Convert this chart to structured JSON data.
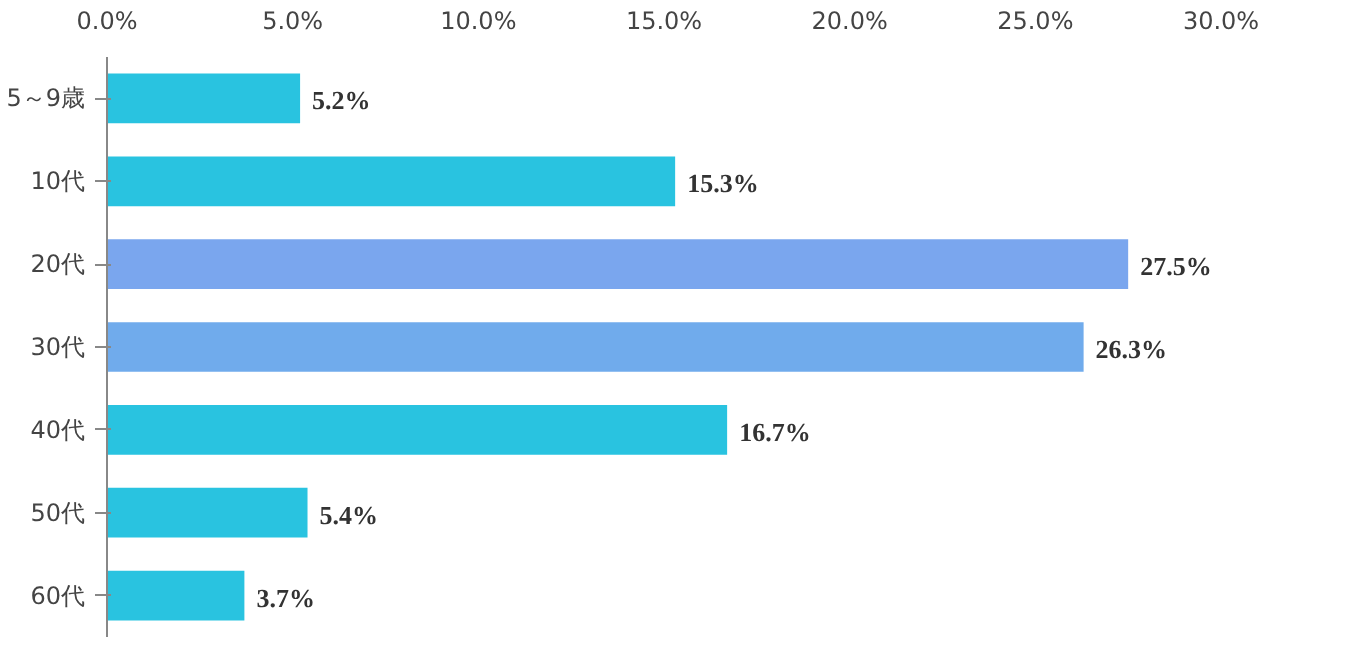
{
  "chart_data": {
    "type": "bar",
    "orientation": "horizontal",
    "categories": [
      "5～9歳",
      "10代",
      "20代",
      "30代",
      "40代",
      "50代",
      "60代"
    ],
    "values": [
      5.2,
      15.3,
      27.5,
      26.3,
      16.7,
      5.4,
      3.7
    ],
    "value_labels": [
      "5.2%",
      "15.3%",
      "27.5%",
      "26.3%",
      "16.7%",
      "5.4%",
      "3.7%"
    ],
    "colors": [
      "#29c3e0",
      "#29c3e0",
      "#7aa6ee",
      "#70abec",
      "#29c3e0",
      "#29c3e0",
      "#29c3e0"
    ],
    "xlim": [
      0,
      30
    ],
    "xticks": [
      {
        "value": 0,
        "label": "0.0%"
      },
      {
        "value": 5,
        "label": "5.0%"
      },
      {
        "value": 10,
        "label": "10.0%"
      },
      {
        "value": 15,
        "label": "15.0%"
      },
      {
        "value": 20,
        "label": "20.0%"
      },
      {
        "value": 25,
        "label": "25.0%"
      },
      {
        "value": 30,
        "label": "30.0%"
      }
    ],
    "grid": false
  }
}
